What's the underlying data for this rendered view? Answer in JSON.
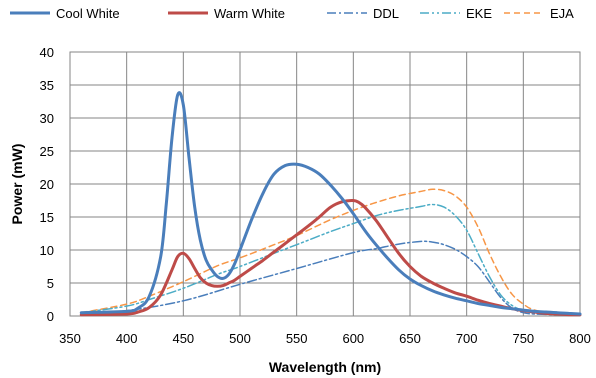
{
  "chart_data": {
    "type": "line",
    "xlabel": "Wavelength (nm)",
    "ylabel": "Power (mW)",
    "xlim": [
      350,
      800
    ],
    "ylim": [
      0,
      40
    ],
    "xticks": [
      "350",
      "400",
      "450",
      "500",
      "550",
      "600",
      "650",
      "700",
      "750",
      "800"
    ],
    "yticks": [
      "0",
      "5",
      "10",
      "15",
      "20",
      "25",
      "30",
      "35",
      "40"
    ],
    "grid": true,
    "legend_position": "top",
    "series": [
      {
        "name": "Cool White",
        "color": "#4a7ebb",
        "style": "solid",
        "x": [
          360,
          400,
          410,
          420,
          430,
          435,
          440,
          445,
          450,
          455,
          460,
          465,
          470,
          475,
          480,
          485,
          490,
          495,
          500,
          510,
          520,
          530,
          540,
          550,
          560,
          570,
          580,
          590,
          600,
          610,
          620,
          630,
          640,
          650,
          660,
          670,
          680,
          690,
          700,
          710,
          720,
          730,
          740,
          750,
          760,
          770,
          780,
          790,
          800
        ],
        "y": [
          0.5,
          0.7,
          1.2,
          3.0,
          9.0,
          17.0,
          27.0,
          33.5,
          32.0,
          24.0,
          16.5,
          11.5,
          8.5,
          7.0,
          6.0,
          5.7,
          6.3,
          7.8,
          10.0,
          14.5,
          18.5,
          21.5,
          22.8,
          23.0,
          22.5,
          21.5,
          19.8,
          17.8,
          15.5,
          13.0,
          10.8,
          8.8,
          7.0,
          5.6,
          4.6,
          3.8,
          3.2,
          2.7,
          2.3,
          1.9,
          1.6,
          1.3,
          1.1,
          0.9,
          0.7,
          0.6,
          0.5,
          0.4,
          0.3
        ]
      },
      {
        "name": "Warm White",
        "color": "#be4b48",
        "style": "solid",
        "x": [
          360,
          400,
          410,
          420,
          430,
          440,
          445,
          450,
          455,
          460,
          465,
          470,
          475,
          480,
          485,
          490,
          495,
          500,
          510,
          520,
          530,
          540,
          550,
          560,
          570,
          580,
          590,
          600,
          605,
          610,
          620,
          630,
          640,
          650,
          660,
          670,
          680,
          690,
          700,
          710,
          720,
          730,
          740,
          750,
          760,
          770,
          780,
          790,
          800
        ],
        "y": [
          0.2,
          0.3,
          0.6,
          1.3,
          3.2,
          7.0,
          9.0,
          9.5,
          8.7,
          7.2,
          5.8,
          5.0,
          4.6,
          4.5,
          4.6,
          5.0,
          5.4,
          6.0,
          7.2,
          8.4,
          9.7,
          11.0,
          12.3,
          13.6,
          15.0,
          16.5,
          17.3,
          17.5,
          17.2,
          16.5,
          14.5,
          12.0,
          9.5,
          7.5,
          6.0,
          5.0,
          4.2,
          3.5,
          3.0,
          2.4,
          1.9,
          1.5,
          1.1,
          0.8,
          0.6,
          0.4,
          0.3,
          0.2,
          0.2
        ]
      },
      {
        "name": "DDL",
        "color": "#4a7ebb",
        "style": "dashdot",
        "x": [
          360,
          400,
          450,
          500,
          550,
          600,
          620,
          640,
          660,
          670,
          680,
          690,
          700,
          710,
          720,
          730,
          740,
          750,
          760,
          780,
          800
        ],
        "y": [
          0.3,
          0.8,
          2.3,
          4.8,
          7.2,
          9.6,
          10.2,
          10.9,
          11.3,
          11.2,
          10.8,
          10.1,
          9.0,
          7.5,
          5.2,
          2.8,
          1.2,
          0.5,
          0.3,
          0.2,
          0.1
        ]
      },
      {
        "name": "EKE",
        "color": "#4bacc6",
        "style": "dashdotdot",
        "x": [
          360,
          400,
          420,
          450,
          480,
          500,
          530,
          550,
          580,
          600,
          620,
          640,
          660,
          670,
          680,
          690,
          700,
          710,
          720,
          730,
          740,
          750,
          760,
          780,
          800
        ],
        "y": [
          0.5,
          1.5,
          2.5,
          4.2,
          6.3,
          7.5,
          9.5,
          10.8,
          12.8,
          14.0,
          15.2,
          16.0,
          16.6,
          16.9,
          16.5,
          15.2,
          13.0,
          9.5,
          6.0,
          3.2,
          1.6,
          0.8,
          0.5,
          0.3,
          0.2
        ]
      },
      {
        "name": "EJA",
        "color": "#f79646",
        "style": "dashed",
        "x": [
          360,
          400,
          420,
          450,
          480,
          500,
          530,
          550,
          580,
          600,
          620,
          640,
          660,
          670,
          680,
          690,
          700,
          710,
          720,
          730,
          740,
          750,
          760,
          780,
          800
        ],
        "y": [
          0.5,
          1.8,
          3.0,
          5.2,
          7.6,
          8.8,
          10.8,
          12.2,
          14.6,
          16.0,
          17.2,
          18.2,
          18.9,
          19.2,
          19.0,
          18.2,
          16.5,
          13.5,
          9.5,
          6.0,
          3.3,
          1.8,
          0.9,
          0.4,
          0.3
        ]
      }
    ]
  }
}
